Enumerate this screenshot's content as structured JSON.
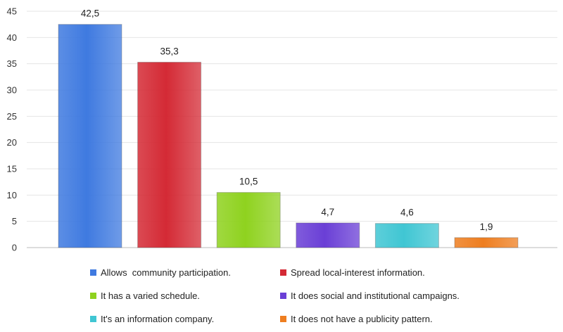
{
  "chart_data": {
    "type": "bar",
    "title": "",
    "xlabel": "",
    "ylabel": "",
    "ylim": [
      0,
      45
    ],
    "yticks": [
      "0",
      "5",
      "10",
      "15",
      "20",
      "25",
      "30",
      "35",
      "40",
      "45"
    ],
    "grid": true,
    "legend_position": "bottom",
    "categories": [
      "Allows  community participation.",
      "Spread local-interest information.",
      "It has a varied schedule.",
      "It does social and institutional campaigns.",
      "It's an information company.",
      "It does not have a publicity pattern."
    ],
    "values": [
      42.5,
      35.3,
      10.5,
      4.7,
      4.6,
      1.9
    ],
    "value_labels": [
      "42,5",
      "35,3",
      "10,5",
      "4,7",
      "4,6",
      "1,9"
    ],
    "colors": [
      "#3f7ae0",
      "#d42a35",
      "#8fd21f",
      "#6a3fd6",
      "#40c6d3",
      "#ee7e20"
    ]
  }
}
